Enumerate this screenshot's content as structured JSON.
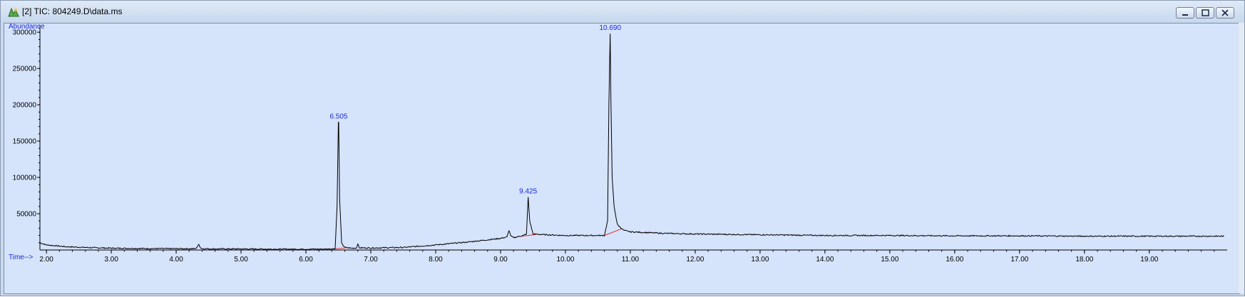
{
  "window": {
    "title": "[2] TIC: 804249.D\\data.ms",
    "app_icon": "chromatogram-app-icon",
    "controls": [
      "minimize-icon",
      "maximize-icon",
      "close-icon"
    ]
  },
  "colors": {
    "plot_background": "#d5e3fb",
    "trace": "#000000",
    "peak_label": "#1a2ad6",
    "baseline": "#e03030",
    "axis_label": "#1a2ad6"
  },
  "chart_data": {
    "type": "line",
    "xlabel": "Time-->",
    "ylabel": "Abundance",
    "xlim": [
      1.9,
      20.2
    ],
    "ylim": [
      0,
      310000
    ],
    "x_ticks": [
      "2.00",
      "3.00",
      "4.00",
      "5.00",
      "6.00",
      "7.00",
      "8.00",
      "9.00",
      "10.00",
      "11.00",
      "12.00",
      "13.00",
      "14.00",
      "15.00",
      "16.00",
      "17.00",
      "18.00",
      "19.00"
    ],
    "y_ticks": [
      "50000",
      "100000",
      "150000",
      "200000",
      "250000",
      "300000"
    ],
    "peak_labels": [
      {
        "label": "6.505",
        "rt": 6.505,
        "abundance": 176000
      },
      {
        "label": "9.425",
        "rt": 9.425,
        "abundance": 73000
      },
      {
        "label": "10.690",
        "rt": 10.69,
        "abundance": 298000
      }
    ],
    "series": [
      {
        "x": [
          1.9,
          2.0,
          2.3,
          2.6,
          3.0,
          3.5,
          4.0,
          4.3,
          4.35,
          4.38,
          4.42,
          4.6,
          5.0,
          5.5,
          6.0,
          6.3,
          6.45,
          6.48,
          6.5,
          6.505,
          6.52,
          6.55,
          6.6,
          6.7,
          6.78,
          6.8,
          6.82,
          7.0,
          7.5,
          8.0,
          8.5,
          9.0,
          9.1,
          9.13,
          9.16,
          9.2,
          9.35,
          9.4,
          9.425,
          9.45,
          9.5,
          9.7,
          10.0,
          10.3,
          10.6,
          10.65,
          10.67,
          10.69,
          10.7,
          10.72,
          10.75,
          10.8,
          10.9,
          11.0,
          11.5,
          12.0,
          13.0,
          14.0,
          15.0,
          16.0,
          17.0,
          18.0,
          19.0,
          20.0,
          20.15
        ],
        "y": [
          10000,
          7000,
          4500,
          3500,
          2500,
          2000,
          1800,
          1800,
          7500,
          2500,
          1800,
          1500,
          1500,
          1200,
          1200,
          1200,
          2000,
          60000,
          176000,
          176000,
          70000,
          9000,
          3500,
          2500,
          2800,
          9000,
          3000,
          2800,
          3500,
          7000,
          11000,
          16000,
          18000,
          27000,
          19000,
          17000,
          20000,
          22000,
          73000,
          40000,
          22000,
          21000,
          20000,
          20000,
          20000,
          40000,
          200000,
          298000,
          210000,
          100000,
          60000,
          35000,
          27000,
          25000,
          23000,
          22000,
          21000,
          20000,
          20000,
          19500,
          19500,
          19000,
          19000,
          19000,
          19000
        ]
      }
    ]
  }
}
